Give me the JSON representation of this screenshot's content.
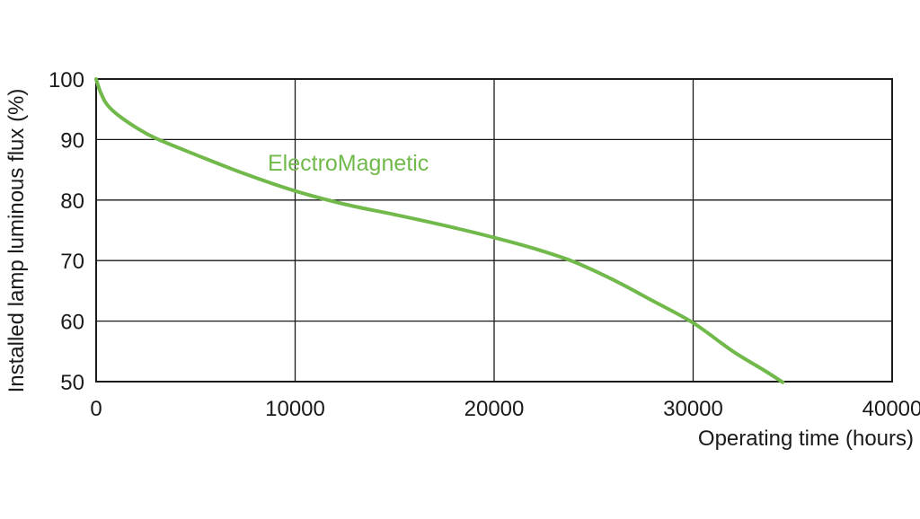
{
  "chart_data": {
    "type": "line",
    "title": "",
    "xlabel": "Operating time (hours)",
    "ylabel": "Installed lamp luminous flux  (%)",
    "xlim": [
      0,
      40000
    ],
    "ylim": [
      50,
      100
    ],
    "x_ticks": [
      0,
      10000,
      20000,
      30000,
      40000
    ],
    "y_ticks": [
      50,
      60,
      70,
      80,
      90,
      100
    ],
    "x_tick_labels": [
      "0",
      "10000",
      "20000",
      "30000",
      "40000"
    ],
    "y_tick_labels": [
      "50",
      "60",
      "70",
      "80",
      "90",
      "100"
    ],
    "grid": true,
    "legend": "none",
    "series": [
      {
        "name": "ElectroMagnetic",
        "color": "#71b94b",
        "x": [
          0,
          200,
          500,
          1000,
          2000,
          3000,
          5000,
          7500,
          10000,
          12500,
          15000,
          17500,
          20000,
          22000,
          24000,
          26000,
          28000,
          30000,
          32000,
          33500,
          34500
        ],
        "y": [
          100,
          98,
          96,
          94.3,
          92,
          90.2,
          87.5,
          84.3,
          81.5,
          79.3,
          77.6,
          75.8,
          73.8,
          72,
          69.8,
          66.8,
          63.3,
          59.7,
          55,
          52,
          49.9
        ]
      }
    ]
  }
}
